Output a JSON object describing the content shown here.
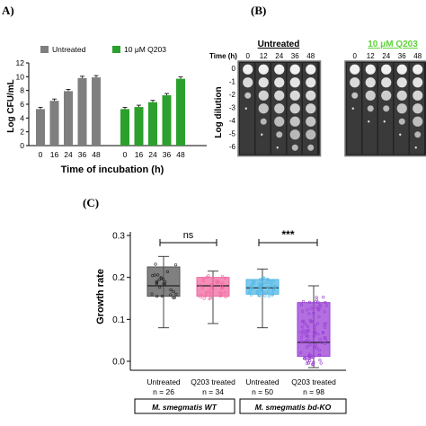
{
  "panels": {
    "a": "A)",
    "b": "(B)",
    "c": "(C)"
  },
  "chart_data": [
    {
      "type": "bar",
      "ylabel": "Log CFU/mL",
      "xlabel": "Time of incubation (h)",
      "ylim": [
        0,
        12
      ],
      "yticks": [
        "0",
        "2",
        "4",
        "6",
        "8",
        "10",
        "12"
      ],
      "categories": [
        "0",
        "16",
        "24",
        "36",
        "48"
      ],
      "legend_placement": "top",
      "series": [
        {
          "name": "Untreated",
          "color": "#7f7f7f",
          "values": [
            5.3,
            6.5,
            7.9,
            9.8,
            9.9
          ]
        },
        {
          "name": "10 μM Q203",
          "color": "#2ca02c",
          "values": [
            5.3,
            5.6,
            6.3,
            7.3,
            9.7
          ]
        }
      ]
    },
    {
      "type": "table",
      "row_label_axis": "Log dilution",
      "time_label": "Time (h)",
      "dilutions": [
        "0",
        "-1",
        "-2",
        "-3",
        "-4",
        "-5",
        "-6"
      ],
      "groups": [
        {
          "title": "Untreated",
          "color": "#000000",
          "times": [
            "0",
            "12",
            "24",
            "36",
            "48"
          ]
        },
        {
          "title": "10 μM Q203",
          "color": "#5fd33a",
          "times": [
            "0",
            "12",
            "24",
            "36",
            "48"
          ]
        }
      ]
    },
    {
      "type": "box",
      "ylabel": "Growth rate",
      "ylim": [
        -0.02,
        0.3
      ],
      "yticks": [
        "0.0",
        "0.1",
        "0.2",
        "0.3"
      ],
      "boxes": [
        {
          "label": "Untreated",
          "n": "n = 26",
          "color": "#555555",
          "min": 0.08,
          "q1": 0.155,
          "median": 0.18,
          "q3": 0.225,
          "max": 0.25
        },
        {
          "label": "Q203 treated",
          "n": "n = 34",
          "color": "#f06aa0",
          "min": 0.09,
          "q1": 0.155,
          "median": 0.18,
          "q3": 0.2,
          "max": 0.215
        },
        {
          "label": "Untreated",
          "n": "n = 50",
          "color": "#52b7e6",
          "min": 0.08,
          "q1": 0.16,
          "median": 0.175,
          "q3": 0.195,
          "max": 0.22
        },
        {
          "label": "Q203 treated",
          "n": "n = 98",
          "color": "#9a3fd6",
          "min": -0.015,
          "q1": 0.012,
          "median": 0.045,
          "q3": 0.14,
          "max": 0.18
        }
      ],
      "significance": [
        {
          "pair": [
            0,
            1
          ],
          "label": "ns"
        },
        {
          "pair": [
            2,
            3
          ],
          "label": "***"
        }
      ],
      "groups": [
        "M. smegmatis WT",
        "M. smegmatis bd-KO"
      ]
    }
  ]
}
